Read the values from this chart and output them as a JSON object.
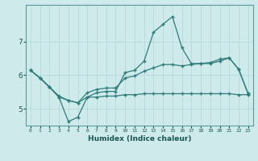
{
  "xlabel": "Humidex (Indice chaleur)",
  "ylabel": "",
  "bg_color": "#ceeaea",
  "line_color": "#2e7b7b",
  "xlim": [
    -0.5,
    23.5
  ],
  "ylim": [
    4.5,
    8.1
  ],
  "yticks": [
    5,
    6,
    7
  ],
  "xticks": [
    0,
    1,
    2,
    3,
    4,
    5,
    6,
    7,
    8,
    9,
    10,
    11,
    12,
    13,
    14,
    15,
    16,
    17,
    18,
    19,
    20,
    21,
    22,
    23
  ],
  "line1_x": [
    0,
    1,
    2,
    3,
    4,
    5,
    6,
    7,
    8,
    9,
    10,
    11,
    12,
    13,
    14,
    15,
    16,
    17,
    18,
    19,
    20,
    21,
    22,
    23
  ],
  "line1_y": [
    6.15,
    5.92,
    5.65,
    5.35,
    4.62,
    4.75,
    5.35,
    5.48,
    5.52,
    5.52,
    6.08,
    6.15,
    6.42,
    7.28,
    7.52,
    7.75,
    6.82,
    6.35,
    6.35,
    6.35,
    6.42,
    6.52,
    6.18,
    5.45
  ],
  "line2_x": [
    0,
    1,
    2,
    3,
    4,
    5,
    6,
    7,
    8,
    9,
    10,
    11,
    12,
    13,
    14,
    15,
    16,
    17,
    18,
    19,
    20,
    21,
    22,
    23
  ],
  "line2_y": [
    6.15,
    5.92,
    5.65,
    5.38,
    5.25,
    5.18,
    5.48,
    5.58,
    5.62,
    5.62,
    5.92,
    5.98,
    6.12,
    6.22,
    6.32,
    6.32,
    6.28,
    6.32,
    6.35,
    6.38,
    6.48,
    6.52,
    6.18,
    5.45
  ],
  "line3_x": [
    0,
    1,
    2,
    3,
    4,
    5,
    6,
    7,
    8,
    9,
    10,
    11,
    12,
    13,
    14,
    15,
    16,
    17,
    18,
    19,
    20,
    21,
    22,
    23
  ],
  "line3_y": [
    6.15,
    5.92,
    5.65,
    5.35,
    5.25,
    5.18,
    5.35,
    5.35,
    5.38,
    5.38,
    5.42,
    5.42,
    5.45,
    5.45,
    5.45,
    5.45,
    5.45,
    5.45,
    5.45,
    5.45,
    5.45,
    5.45,
    5.42,
    5.42
  ]
}
